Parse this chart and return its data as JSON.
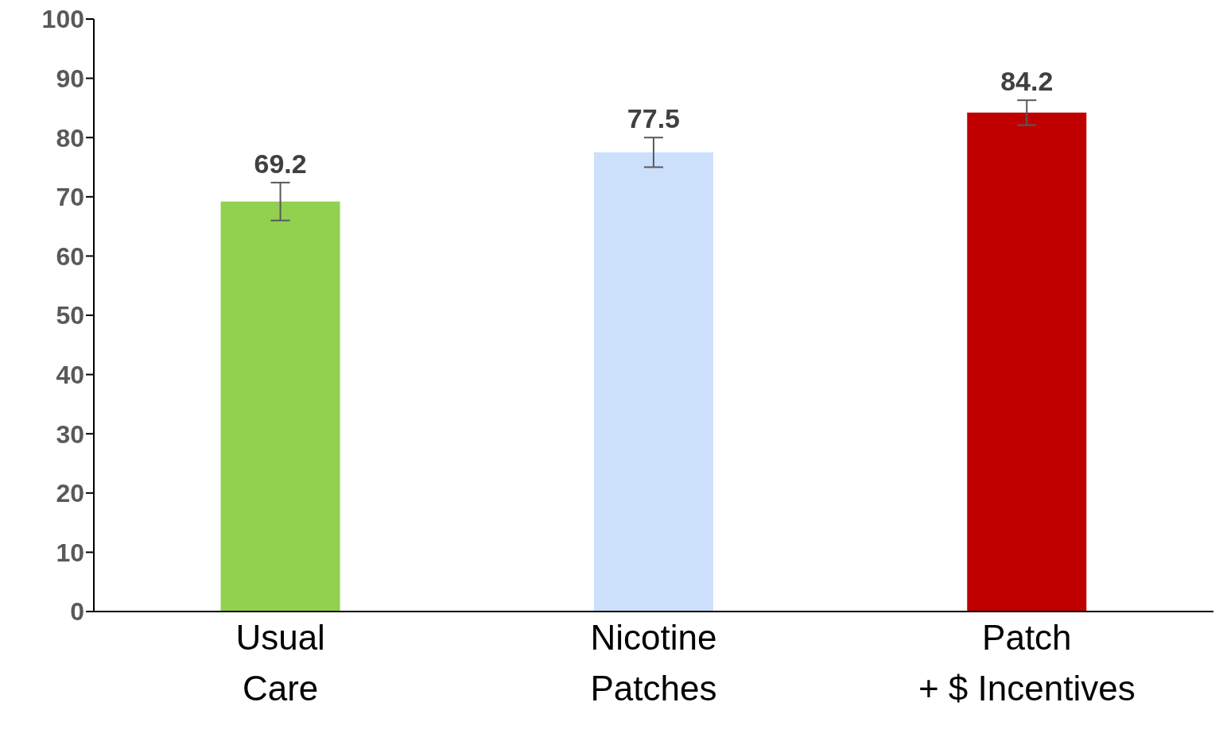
{
  "chart_data": {
    "type": "bar",
    "categories": [
      "Usual\nCare",
      "Nicotine\nPatches",
      "Patch\n+ $ Incentives"
    ],
    "values": [
      69.2,
      77.5,
      84.2
    ],
    "colors": [
      "#92d050",
      "#cce0fc",
      "#c00000"
    ],
    "errors": [
      3.2,
      2.5,
      2.1
    ],
    "data_labels": true,
    "ylim": [
      0,
      100
    ],
    "yticks": [
      0,
      10,
      20,
      30,
      40,
      50,
      60,
      70,
      80,
      90,
      100
    ],
    "grid": false,
    "legend": false
  }
}
